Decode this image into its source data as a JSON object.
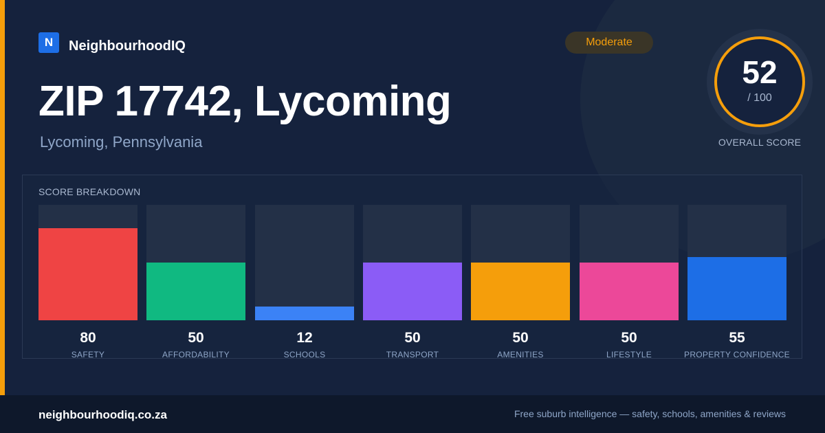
{
  "brand": {
    "logo_letter": "N",
    "name": "NeighbourhoodIQ"
  },
  "location": {
    "title": "ZIP 17742, Lycoming",
    "subtitle": "Lycoming, Pennsylvania"
  },
  "rating_badge": "Moderate",
  "overall": {
    "score": "52",
    "max": "/ 100",
    "caption": "OVERALL SCORE"
  },
  "breakdown": {
    "title": "SCORE BREAKDOWN",
    "items": [
      {
        "label": "SAFETY",
        "value": 80,
        "color": "#ef4444"
      },
      {
        "label": "AFFORDABILITY",
        "value": 50,
        "color": "#10b981"
      },
      {
        "label": "SCHOOLS",
        "value": 12,
        "color": "#3b82f6"
      },
      {
        "label": "TRANSPORT",
        "value": 50,
        "color": "#8b5cf6"
      },
      {
        "label": "AMENITIES",
        "value": 50,
        "color": "#f59e0b"
      },
      {
        "label": "LIFESTYLE",
        "value": 50,
        "color": "#ec4899"
      },
      {
        "label": "PROPERTY CONFIDENCE",
        "value": 55,
        "color": "#1d6ee6"
      }
    ]
  },
  "footer": {
    "site": "neighbourhoodiq.co.za",
    "tagline": "Free suburb intelligence — safety, schools, amenities & reviews"
  },
  "colors": {
    "accent": "#f59e0b",
    "background": "#15223d",
    "brand_blue": "#1d6ee6"
  }
}
